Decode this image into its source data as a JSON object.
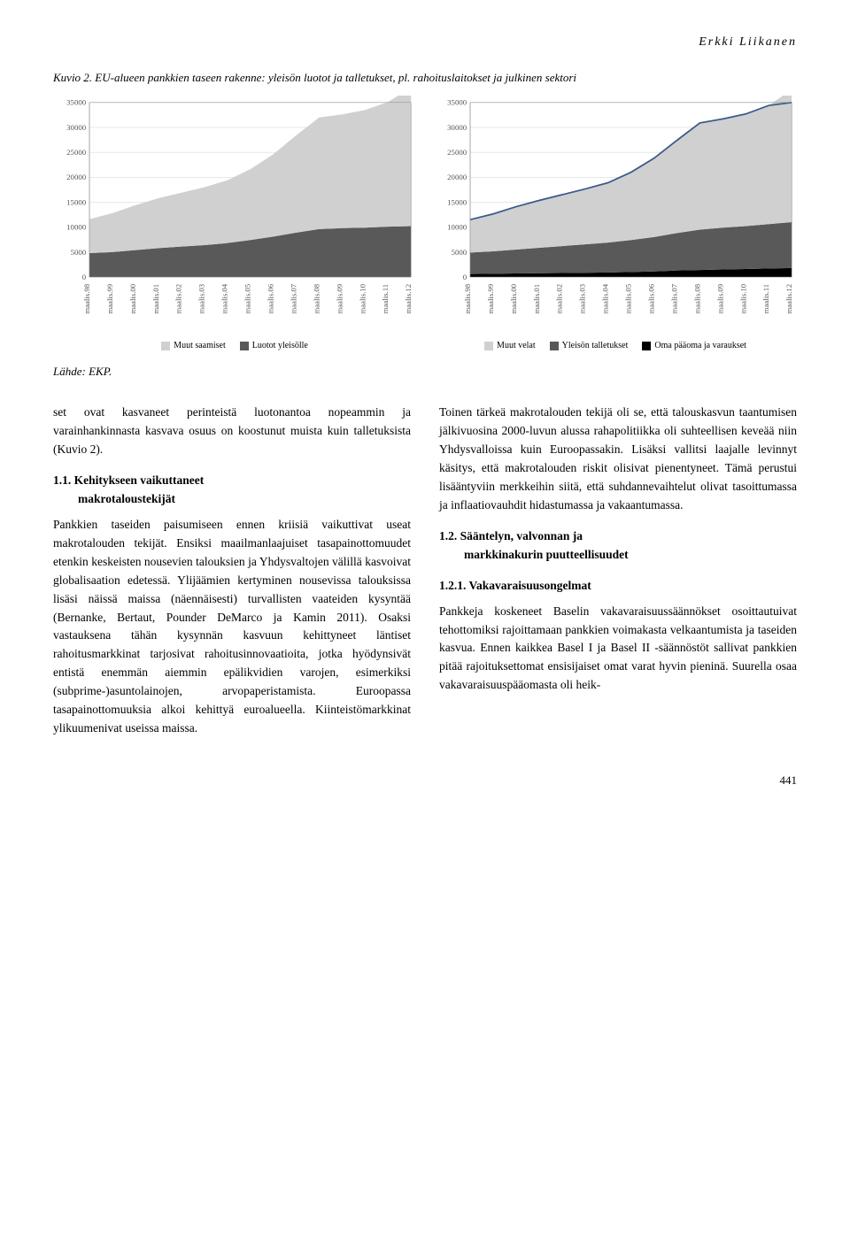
{
  "header": {
    "author": "Erkki Liikanen"
  },
  "figure": {
    "caption": "Kuvio 2. EU-alueen pankkien taseen rakenne: yleisön luotot ja talletukset, pl. rahoituslaitokset ja julkinen sektori",
    "source": "Lähde: EKP."
  },
  "chart_common": {
    "x_labels": [
      "maalis.98",
      "maalis.99",
      "maalis.00",
      "maalis.01",
      "maalis.02",
      "maalis.03",
      "maalis.04",
      "maalis.05",
      "maalis.06",
      "maalis.07",
      "maalis.08",
      "maalis.09",
      "maalis.10",
      "maalis.11",
      "maalis.12"
    ],
    "ylim": [
      0,
      35000
    ],
    "ytick_step": 5000,
    "grid_color": "#d0d0d0",
    "axis_fontsize": 9,
    "background_color": "#ffffff"
  },
  "chart_left": {
    "type": "area",
    "series": [
      {
        "name": "Luotot yleisölle",
        "color": "#595959",
        "values": [
          4800,
          5000,
          5400,
          5800,
          6100,
          6400,
          6800,
          7400,
          8100,
          8900,
          9600,
          9800,
          9900,
          10100,
          10200
        ]
      },
      {
        "name": "Muut saamiset",
        "color": "#d0d0d0",
        "values": [
          6800,
          7800,
          9000,
          10000,
          10800,
          11600,
          12600,
          14200,
          16500,
          19500,
          22400,
          22800,
          23600,
          25000,
          27800
        ]
      }
    ],
    "legend": [
      {
        "label": "Muut saamiset",
        "color": "#d0d0d0"
      },
      {
        "label": "Luotot yleisölle",
        "color": "#595959"
      }
    ]
  },
  "chart_right": {
    "type": "area_with_line",
    "series": [
      {
        "name": "Oma pääoma ja varaukset",
        "color": "#000000",
        "values": [
          600,
          650,
          700,
          750,
          800,
          850,
          900,
          1000,
          1100,
          1300,
          1400,
          1500,
          1600,
          1700,
          1800
        ]
      },
      {
        "name": "Yleisön talletukset",
        "color": "#595959",
        "values": [
          4300,
          4500,
          4800,
          5100,
          5400,
          5700,
          6000,
          6400,
          6900,
          7500,
          8100,
          8400,
          8600,
          8900,
          9200
        ]
      },
      {
        "name": "Muut velat",
        "color": "#d0d0d0",
        "values": [
          6600,
          7500,
          8600,
          9500,
          10300,
          11100,
          12000,
          13600,
          15800,
          18600,
          21400,
          21800,
          22500,
          23800,
          26600
        ]
      }
    ],
    "line": {
      "color": "#3b5a8a",
      "width": 1.8,
      "values": [
        11500,
        12650,
        14100,
        15350,
        16500,
        17650,
        18900,
        21000,
        23800,
        27400,
        30900,
        31700,
        32700,
        34400,
        37600
      ]
    },
    "legend": [
      {
        "label": "Muut velat",
        "color": "#d0d0d0"
      },
      {
        "label": "Yleisön talletukset",
        "color": "#595959"
      },
      {
        "label": "Oma pääoma ja varaukset",
        "color": "#000000"
      }
    ]
  },
  "body": {
    "p1": "set ovat kasvaneet perinteistä luotonantoa nopeammin ja varainhankinnasta kasvava osuus on koostunut muista kuin talletuksista (Kuvio 2).",
    "h11": "1.1. Kehitykseen vaikuttaneet",
    "h11b": "makrotaloustekijät",
    "p2": "Pankkien taseiden paisumiseen ennen kriisiä vaikuttivat useat makrotalouden tekijät. Ensiksi maailmanlaajuiset tasapainottomuudet etenkin keskeisten nousevien talouksien ja Yhdysvaltojen välillä kasvoivat globalisaation edetessä. Ylijäämien kertyminen nousevissa talouksissa lisäsi näissä maissa (näennäisesti) turvallisten vaateiden kysyntää (Bernanke, Bertaut, Pounder DeMarco ja Kamin 2011). Osaksi vastauksena tähän kysynnän kasvuun kehittyneet läntiset rahoitusmarkkinat tarjosivat rahoitusinnovaatioita, jotka hyödynsivät entistä enemmän aiemmin epälikvidien varojen, esimerkiksi (subprime-)asuntolainojen, arvopaperistamista. Euroopassa tasapainottomuuksia alkoi kehittyä euroalueella. Kiinteistömarkkinat ylikuumenivat useissa maissa.",
    "p3": "Toinen tärkeä makrotalouden tekijä oli se, että talouskasvun taantumisen jälkivuosina 2000-luvun alussa rahapolitiikka oli suhteellisen keveää niin Yhdysvalloissa kuin Euroopassakin. Lisäksi vallitsi laajalle levinnyt käsitys, että makrotalouden riskit olisivat pienentyneet. Tämä perustui lisääntyviin merkkeihin siitä, että suhdannevaihtelut olivat tasoittumassa ja inflaatiovauhdit hidastumassa ja vakaantumassa.",
    "h12": "1.2. Sääntelyn, valvonnan ja",
    "h12b": "markkinakurin puutteellisuudet",
    "h121": "1.2.1. Vakavaraisuusongelmat",
    "p4": "Pankkeja koskeneet Baselin vakavaraisuussäännökset osoittautuivat tehottomiksi rajoittamaan pankkien voimakasta velkaantumista ja taseiden kasvua. Ennen kaikkea Basel I ja Basel II -säännöstöt sallivat pankkien pitää rajoituksettomat ensisijaiset omat varat hyvin pieninä. Suurella osaa vakavaraisuuspääomasta oli heik-"
  },
  "page_number": "441"
}
